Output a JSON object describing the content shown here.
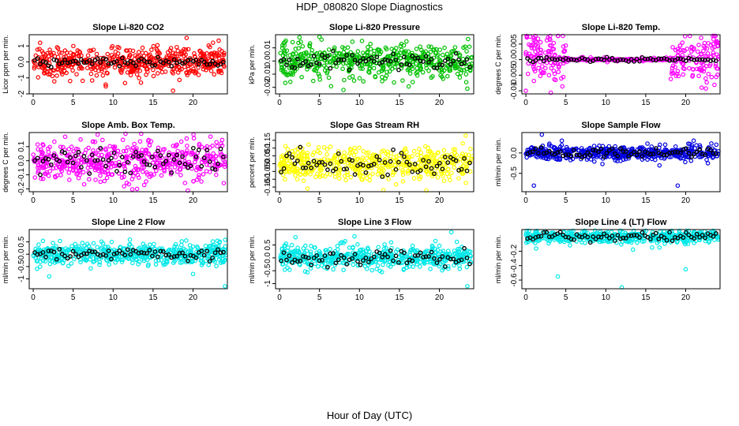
{
  "figure": {
    "title": "HDP_080820  Slope Diagnostics",
    "xlabel": "Hour of Day (UTC)"
  },
  "chart_data": [
    {
      "type": "scatter",
      "title": "Slope Li-820 CO2",
      "ylabel": "Licor ppm per min.",
      "color": "#ff0000",
      "xlim": [
        -0.5,
        24.3
      ],
      "ylim": [
        -2,
        1.7
      ],
      "xticks": [
        0,
        5,
        10,
        15,
        20
      ],
      "yticks": [
        -2,
        -1,
        0,
        1
      ],
      "spread": 0.4,
      "tail": 1.2,
      "dark_spread": 0.15,
      "outliers": [
        [
          17.5,
          -1.8
        ],
        [
          19.2,
          1.5
        ],
        [
          22.5,
          1.2
        ]
      ]
    },
    {
      "type": "scatter",
      "title": "Slope Li-820 Pressure",
      "ylabel": "kPa per min.",
      "color": "#00c000",
      "xlim": [
        -0.5,
        24.3
      ],
      "ylim": [
        -0.025,
        0.02
      ],
      "xticks": [
        0,
        5,
        10,
        15,
        20
      ],
      "yticks": [
        -0.02,
        -0.01,
        0.0,
        0.01
      ],
      "spread": 0.006,
      "tail": 0.012,
      "dark_spread": 0.003,
      "outliers": [
        [
          2.5,
          0.018
        ],
        [
          8,
          -0.022
        ],
        [
          23.5,
          -0.021
        ]
      ]
    },
    {
      "type": "scatter",
      "title": "Slope Li-820 Temp.",
      "ylabel": "degrees C per min.",
      "color": "#ff00ff",
      "xlim": [
        -0.5,
        24.3
      ],
      "ylim": [
        -0.011,
        0.008
      ],
      "xticks": [
        0,
        5,
        10,
        15,
        20
      ],
      "yticks": [
        -0.01,
        -0.005,
        0.0,
        0.005
      ],
      "spread": 0.0003,
      "tail": 0.001,
      "dark_spread": 0.0003,
      "quiet": [
        5,
        18
      ],
      "edge_spread": 0.004,
      "outliers": [
        [
          1,
          0.007
        ],
        [
          22,
          -0.009
        ],
        [
          0,
          -0.01
        ]
      ]
    },
    {
      "type": "scatter",
      "title": "Slope Amb. Box Temp.",
      "ylabel": "degrees C per min.",
      "color": "#ff00ff",
      "xlim": [
        -0.5,
        24.3
      ],
      "ylim": [
        -0.22,
        0.2
      ],
      "xticks": [
        0,
        5,
        10,
        15,
        20
      ],
      "yticks": [
        -0.2,
        -0.1,
        0.0,
        0.1
      ],
      "spread": 0.07,
      "tail": 0.14,
      "dark_spread": 0.05,
      "outliers": [
        [
          13,
          -0.2
        ],
        [
          4,
          0.17
        ]
      ]
    },
    {
      "type": "scatter",
      "title": "Slope Gas Stream RH",
      "ylabel": "percent per min.",
      "color": "#ffff00",
      "xlim": [
        -0.5,
        24.3
      ],
      "ylim": [
        -0.18,
        0.2
      ],
      "xticks": [
        0,
        5,
        10,
        15,
        20
      ],
      "yticks": [
        -0.15,
        -0.1,
        -0.05,
        0.0,
        0.05,
        0.1,
        0.15
      ],
      "spread": 0.05,
      "tail": 0.11,
      "dark_spread": 0.04,
      "outliers": [
        [
          3.5,
          -0.16
        ],
        [
          13,
          -0.17
        ],
        [
          23.3,
          0.18
        ]
      ]
    },
    {
      "type": "scatter",
      "title": "Slope Sample Flow",
      "ylabel": "ml/min per min.",
      "color": "#0000e0",
      "xlim": [
        -0.5,
        24.3
      ],
      "ylim": [
        -0.95,
        0.5
      ],
      "xticks": [
        0,
        5,
        10,
        15,
        20
      ],
      "yticks": [
        -0.5,
        0.0
      ],
      "spread": 0.08,
      "tail": 0.2,
      "dark_spread": 0.06,
      "outliers": [
        [
          1,
          -0.8
        ],
        [
          2,
          0.45
        ],
        [
          19,
          -0.8
        ],
        [
          21,
          0.3
        ]
      ]
    },
    {
      "type": "scatter",
      "title": "Slope Line 2 Flow",
      "ylabel": "ml/min per min.",
      "color": "#00e8e8",
      "xlim": [
        -0.5,
        24.3
      ],
      "ylim": [
        -1.4,
        1.0
      ],
      "xticks": [
        0,
        5,
        10,
        15,
        20
      ],
      "yticks": [
        -1,
        -0.5,
        0.0,
        0.5
      ],
      "spread": 0.2,
      "tail": 0.5,
      "dark_spread": 0.12,
      "outliers": [
        [
          2,
          -0.9
        ],
        [
          20,
          -0.8
        ],
        [
          24,
          -1.3
        ]
      ]
    },
    {
      "type": "scatter",
      "title": "Slope Line 3 Flow",
      "ylabel": "ml/min per min.",
      "color": "#00e8e8",
      "xlim": [
        -0.5,
        24.3
      ],
      "ylim": [
        -1.2,
        1.1
      ],
      "xticks": [
        0,
        5,
        10,
        15,
        20
      ],
      "yticks": [
        -1,
        -0.5,
        0.0,
        0.5
      ],
      "spread": 0.2,
      "tail": 0.45,
      "dark_spread": 0.15,
      "outliers": [
        [
          21.5,
          1.0
        ],
        [
          23.5,
          -1.1
        ],
        [
          2,
          0.8
        ]
      ]
    },
    {
      "type": "scatter",
      "title": "Slope Line 4 (LT) Flow",
      "ylabel": "ml/min per min.",
      "color": "#00e8e8",
      "xlim": [
        -0.5,
        24.3
      ],
      "ylim": [
        -0.72,
        0.1
      ],
      "xticks": [
        0,
        5,
        10,
        15,
        20
      ],
      "yticks": [
        -0.6,
        -0.4,
        -0.2
      ],
      "spread": 0.04,
      "tail": 0.1,
      "dark_spread": 0.03,
      "outliers": [
        [
          4,
          -0.55
        ],
        [
          12,
          -0.7
        ],
        [
          20,
          -0.45
        ]
      ]
    }
  ]
}
